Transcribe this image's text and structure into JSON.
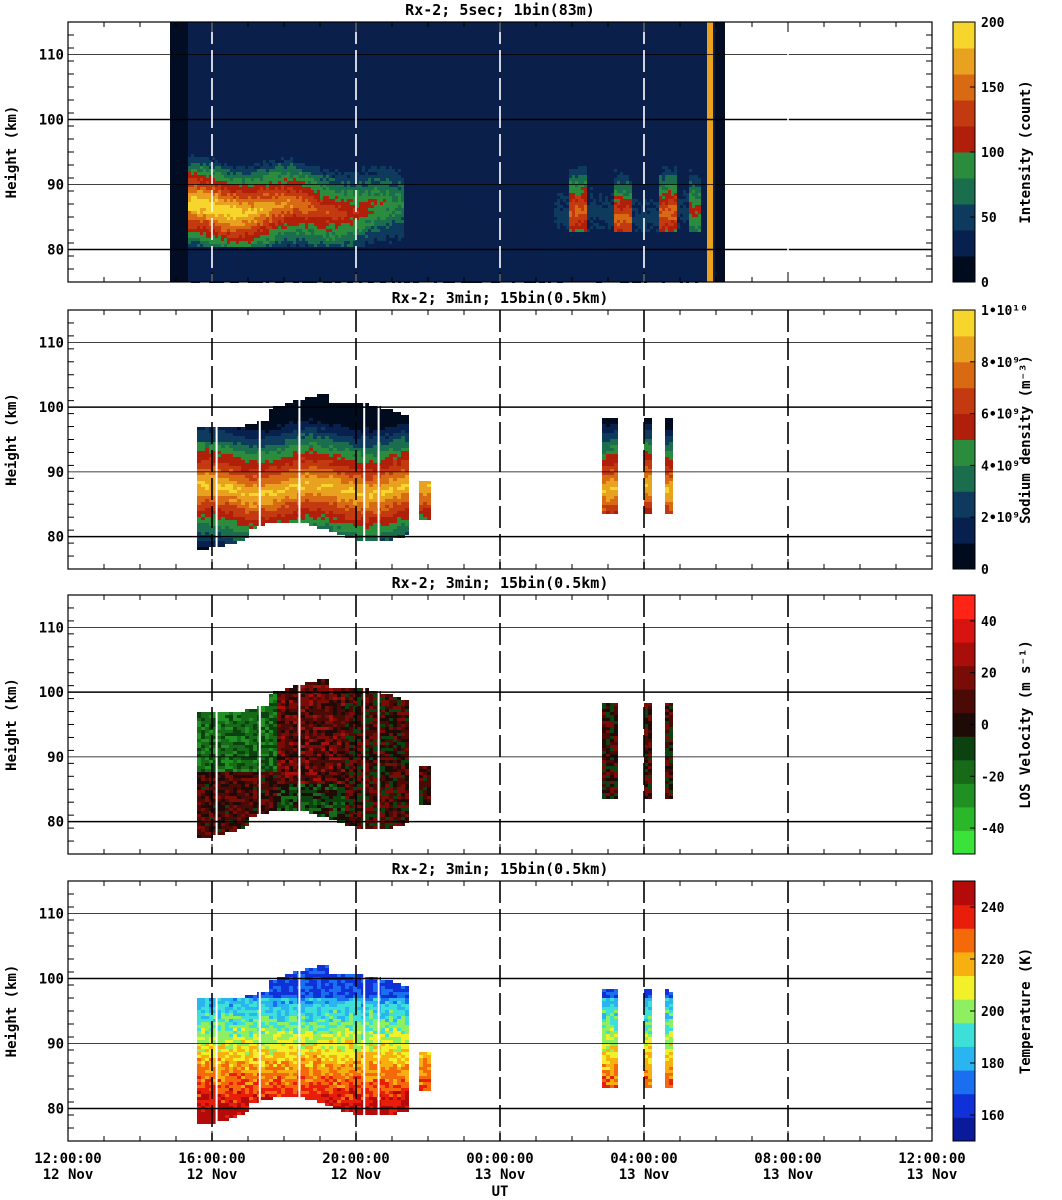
{
  "figure": {
    "xlabel": "UT",
    "x_tick_labels": [
      {
        "time": "12:00:00",
        "date": "12 Nov"
      },
      {
        "time": "16:00:00",
        "date": "12 Nov"
      },
      {
        "time": "20:00:00",
        "date": "12 Nov"
      },
      {
        "time": "00:00:00",
        "date": "13 Nov"
      },
      {
        "time": "04:00:00",
        "date": "13 Nov"
      },
      {
        "time": "08:00:00",
        "date": "13 Nov"
      },
      {
        "time": "12:00:00",
        "date": "13 Nov"
      }
    ]
  },
  "chart_data": [
    {
      "type": "heatmap",
      "title": "Rx-2;  5sec; 1bin(83m)",
      "ylabel": "Height (km)",
      "ylim": [
        75,
        115
      ],
      "y_ticks": [
        80,
        90,
        100,
        110
      ],
      "x_range_hours_ut": [
        "12 Nov 12:00",
        "13 Nov 12:00"
      ],
      "colorbar": {
        "label": "Intensity (count)",
        "range": [
          0,
          200
        ],
        "ticks": [
          "0",
          "50",
          "100",
          "150",
          "200"
        ]
      },
      "data_coverage": [
        {
          "start": "12 Nov 14:50",
          "end": "13 Nov 06:15"
        }
      ],
      "layer": {
        "peak_height_km": 87,
        "lower_edge_km": 81,
        "upper_edge_km": 96
      }
    },
    {
      "type": "heatmap",
      "title": "Rx-2; 3min; 15bin(0.5km)",
      "ylabel": "Height (km)",
      "ylim": [
        75,
        115
      ],
      "y_ticks": [
        80,
        90,
        100,
        110
      ],
      "colorbar": {
        "label": "Sodium density (m⁻³)",
        "range": [
          0,
          10000000000.0
        ],
        "ticks": [
          "0",
          "2•10⁹",
          "4•10⁹",
          "6•10⁹",
          "8•10⁹",
          "1•10¹⁰"
        ]
      },
      "data_coverage": [
        {
          "start": "12 Nov 15:35",
          "end": "12 Nov 21:25"
        },
        {
          "start": "12 Nov 21:45",
          "end": "12 Nov 22:05"
        },
        {
          "start": "13 Nov 02:50",
          "end": "13 Nov 03:05"
        },
        {
          "start": "13 Nov 04:00",
          "end": "13 Nov 04:05"
        },
        {
          "start": "13 Nov 04:35",
          "end": "13 Nov 04:40"
        }
      ]
    },
    {
      "type": "heatmap",
      "title": "Rx-2; 3min; 15bin(0.5km)",
      "ylabel": "Height (km)",
      "ylim": [
        75,
        115
      ],
      "y_ticks": [
        80,
        90,
        100,
        110
      ],
      "colorbar": {
        "label": "LOS Velocity (m s⁻¹)",
        "range": [
          -50,
          50
        ],
        "ticks": [
          "-40",
          "-20",
          "0",
          "20",
          "40"
        ]
      },
      "data_coverage": [
        {
          "start": "12 Nov 15:35",
          "end": "12 Nov 21:25"
        },
        {
          "start": "12 Nov 21:45",
          "end": "12 Nov 22:05"
        },
        {
          "start": "13 Nov 02:50",
          "end": "13 Nov 03:05"
        },
        {
          "start": "13 Nov 04:00",
          "end": "13 Nov 04:05"
        },
        {
          "start": "13 Nov 04:35",
          "end": "13 Nov 04:40"
        }
      ]
    },
    {
      "type": "heatmap",
      "title": "Rx-2; 3min; 15bin(0.5km)",
      "ylabel": "Height (km)",
      "ylim": [
        75,
        115
      ],
      "y_ticks": [
        80,
        90,
        100,
        110
      ],
      "colorbar": {
        "label": "Temperature (K)",
        "range": [
          150,
          250
        ],
        "ticks": [
          "160",
          "180",
          "200",
          "220",
          "240"
        ]
      },
      "data_coverage": [
        {
          "start": "12 Nov 15:35",
          "end": "12 Nov 21:25"
        },
        {
          "start": "12 Nov 21:45",
          "end": "12 Nov 22:05"
        },
        {
          "start": "13 Nov 02:50",
          "end": "13 Nov 03:05"
        },
        {
          "start": "13 Nov 04:00",
          "end": "13 Nov 04:05"
        },
        {
          "start": "13 Nov 04:35",
          "end": "13 Nov 04:40"
        }
      ]
    }
  ]
}
